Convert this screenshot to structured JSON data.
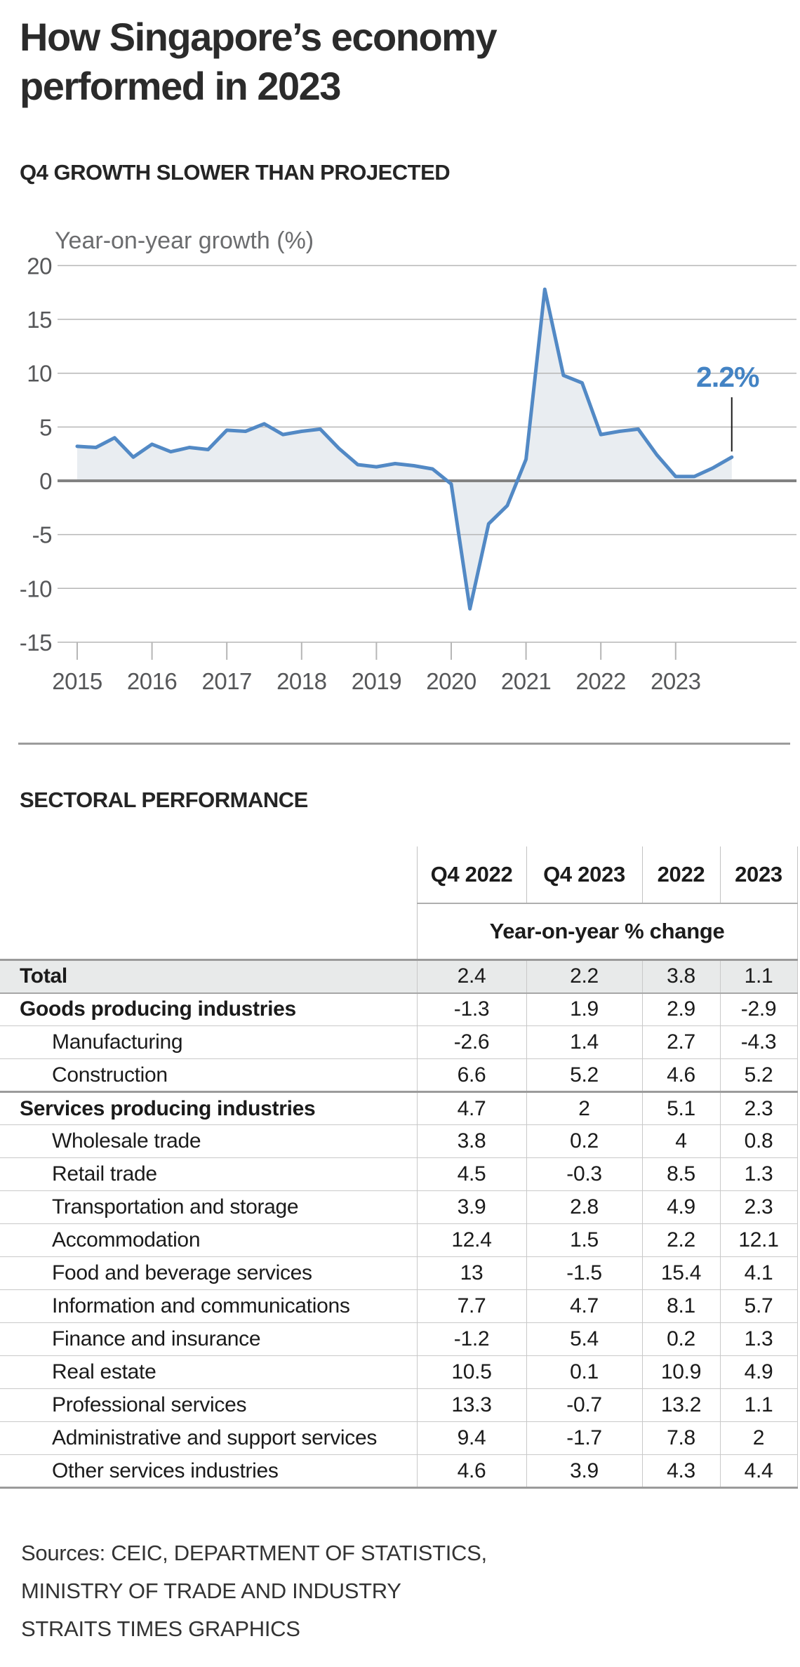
{
  "header": {
    "title_line1": "How Singapore’s economy",
    "title_line2": "performed in 2023"
  },
  "chart_data": {
    "type": "area",
    "title": "Q4 GROWTH SLOWER THAN PROJECTED",
    "ylabel": "Year-on-year growth (%)",
    "frequency": "quarterly",
    "x_start_year": 2015,
    "x_year_labels": [
      "2015",
      "2016",
      "2017",
      "2018",
      "2019",
      "2020",
      "2021",
      "2022",
      "2023"
    ],
    "values": [
      3.2,
      3.1,
      4.0,
      2.2,
      3.4,
      2.7,
      3.1,
      2.9,
      4.7,
      4.6,
      5.3,
      4.3,
      4.6,
      4.8,
      3.0,
      1.5,
      1.3,
      1.6,
      1.4,
      1.1,
      -0.3,
      -11.9,
      -4.0,
      -2.3,
      2.0,
      17.8,
      9.8,
      9.1,
      4.3,
      4.6,
      4.8,
      2.4,
      0.4,
      0.4,
      1.2,
      2.2
    ],
    "yticks": [
      20,
      15,
      10,
      5,
      0,
      -5,
      -10,
      -15
    ],
    "ylim": [
      -15,
      20
    ],
    "grid": true,
    "legend": "none",
    "annotation": {
      "label": "2.2%",
      "value": 2.2,
      "color": "#4383c4"
    },
    "line_color": "#5289c5",
    "area_color": "#e9edf1",
    "gridline_color": "#b6b6b6",
    "zero_line_color": "#828282"
  },
  "sector_table": {
    "heading": "SECTORAL PERFORMANCE",
    "col_headers": [
      "Q4 2022",
      "Q4 2023",
      "2022",
      "2023"
    ],
    "span_header": "Year-on-year % change",
    "rows": [
      {
        "label": "Total",
        "values": [
          "2.4",
          "2.2",
          "3.8",
          "1.1"
        ]
      },
      {
        "label": "Goods producing industries",
        "values": [
          "-1.3",
          "1.9",
          "2.9",
          "-2.9"
        ]
      },
      {
        "label": "Manufacturing",
        "values": [
          "-2.6",
          "1.4",
          "2.7",
          "-4.3"
        ]
      },
      {
        "label": "Construction",
        "values": [
          "6.6",
          "5.2",
          "4.6",
          "5.2"
        ]
      },
      {
        "label": "Services producing industries",
        "values": [
          "4.7",
          "2",
          "5.1",
          "2.3"
        ]
      },
      {
        "label": "Wholesale trade",
        "values": [
          "3.8",
          "0.2",
          "4",
          "0.8"
        ]
      },
      {
        "label": "Retail trade",
        "values": [
          "4.5",
          "-0.3",
          "8.5",
          "1.3"
        ]
      },
      {
        "label": "Transportation and storage",
        "values": [
          "3.9",
          "2.8",
          "4.9",
          "2.3"
        ]
      },
      {
        "label": "Accommodation",
        "values": [
          "12.4",
          "1.5",
          "2.2",
          "12.1"
        ]
      },
      {
        "label": "Food and beverage services",
        "values": [
          "13",
          "-1.5",
          "15.4",
          "4.1"
        ]
      },
      {
        "label": "Information and communications",
        "values": [
          "7.7",
          "4.7",
          "8.1",
          "5.7"
        ]
      },
      {
        "label": "Finance and insurance",
        "values": [
          "-1.2",
          "5.4",
          "0.2",
          "1.3"
        ]
      },
      {
        "label": "Real estate",
        "values": [
          "10.5",
          "0.1",
          "10.9",
          "4.9"
        ]
      },
      {
        "label": "Professional services",
        "values": [
          "13.3",
          "-0.7",
          "13.2",
          "1.1"
        ]
      },
      {
        "label": "Administrative and support services",
        "values": [
          "9.4",
          "-1.7",
          "7.8",
          "2"
        ]
      },
      {
        "label": "Other services industries",
        "values": [
          "4.6",
          "3.9",
          "4.3",
          "4.4"
        ]
      }
    ]
  },
  "footer": {
    "sources_line1": "Sources: CEIC, DEPARTMENT OF STATISTICS,",
    "sources_line2": "MINISTRY OF TRADE AND INDUSTRY",
    "sources_line3": "STRAITS TIMES GRAPHICS"
  }
}
